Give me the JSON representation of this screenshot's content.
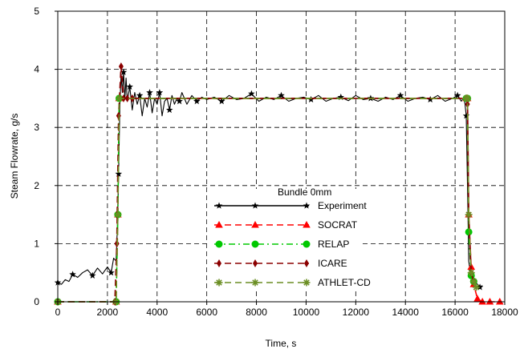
{
  "chart_data": {
    "type": "line",
    "xlabel": "Time, s",
    "ylabel": "Steam Flowrate, g/s",
    "xlim": [
      0,
      18000
    ],
    "ylim": [
      0,
      5
    ],
    "xticks": [
      0,
      2000,
      4000,
      6000,
      8000,
      10000,
      12000,
      14000,
      16000,
      18000
    ],
    "yticks": [
      0,
      1,
      2,
      3,
      4,
      5
    ],
    "grid": "dashed",
    "legend_title": "Bundle 0mm",
    "legend_position": "center-bottom",
    "series": [
      {
        "name": "Experiment",
        "color": "#000000",
        "dash": "solid",
        "marker": "star",
        "x": [
          0,
          150,
          300,
          450,
          600,
          800,
          1000,
          1200,
          1400,
          1600,
          1800,
          2000,
          2150,
          2250,
          2350,
          2400,
          2450,
          2500,
          2550,
          2600,
          2650,
          2700,
          2750,
          2800,
          2900,
          3000,
          3100,
          3200,
          3300,
          3400,
          3500,
          3600,
          3700,
          3800,
          3900,
          4000,
          4100,
          4200,
          4300,
          4400,
          4500,
          4600,
          4700,
          4800,
          4900,
          5000,
          5200,
          5400,
          5600,
          5800,
          6000,
          6300,
          6600,
          6900,
          7200,
          7500,
          7800,
          8100,
          8400,
          8700,
          9000,
          9300,
          9600,
          9900,
          10200,
          10500,
          10800,
          11100,
          11400,
          11700,
          12000,
          12300,
          12600,
          12900,
          13200,
          13500,
          13800,
          14100,
          14400,
          14700,
          15000,
          15300,
          15600,
          15900,
          16100,
          16250,
          16350,
          16400,
          16450,
          16500,
          16550,
          16600,
          16650,
          16700,
          16800,
          16900,
          17000,
          17100
        ],
        "y": [
          0.33,
          0.3,
          0.38,
          0.35,
          0.47,
          0.42,
          0.5,
          0.55,
          0.45,
          0.58,
          0.48,
          0.6,
          0.5,
          0.75,
          0.7,
          1.3,
          2.2,
          3.4,
          3.9,
          3.6,
          3.95,
          3.5,
          3.85,
          3.45,
          3.7,
          3.3,
          3.6,
          3.4,
          3.55,
          3.2,
          3.5,
          3.35,
          3.6,
          3.25,
          3.5,
          3.4,
          3.6,
          3.2,
          3.45,
          3.5,
          3.3,
          3.55,
          3.4,
          3.5,
          3.45,
          3.6,
          3.4,
          3.55,
          3.45,
          3.52,
          3.48,
          3.52,
          3.45,
          3.55,
          3.48,
          3.5,
          3.58,
          3.45,
          3.52,
          3.48,
          3.55,
          3.45,
          3.5,
          3.52,
          3.48,
          3.55,
          3.45,
          3.5,
          3.52,
          3.46,
          3.55,
          3.48,
          3.5,
          3.45,
          3.52,
          3.48,
          3.55,
          3.45,
          3.5,
          3.52,
          3.48,
          3.55,
          3.45,
          3.5,
          3.55,
          3.45,
          3.52,
          3.4,
          3.2,
          2.0,
          0.7,
          0.55,
          0.45,
          0.4,
          0.35,
          0.3,
          0.25,
          0.28
        ]
      },
      {
        "name": "SOCRAT",
        "color": "#ff0000",
        "dash": "dashed",
        "marker": "triangle",
        "x": [
          0,
          2350,
          2420,
          2470,
          16450,
          16500,
          16550,
          16650,
          16750,
          16900,
          17100,
          17400,
          17800
        ],
        "y": [
          0.0,
          0.0,
          1.5,
          3.5,
          3.5,
          3.5,
          1.5,
          0.6,
          0.3,
          0.05,
          0.0,
          0.0,
          0.0
        ]
      },
      {
        "name": "RELAP",
        "color": "#00c800",
        "dash": "dashdot",
        "marker": "circle",
        "x": [
          0,
          2350,
          2420,
          2470,
          16450,
          16500,
          16550,
          16650,
          16750
        ],
        "y": [
          0.0,
          0.0,
          1.5,
          3.5,
          3.5,
          3.5,
          1.2,
          0.45,
          0.35
        ]
      },
      {
        "name": "ICARE",
        "color": "#8b0000",
        "dash": "dashed",
        "marker": "diamond",
        "x": [
          0,
          2300,
          2380,
          2450,
          2550,
          2650,
          2800,
          3000,
          16450,
          16500,
          16550,
          16650,
          16750
        ],
        "y": [
          0.0,
          0.0,
          1.0,
          3.2,
          4.05,
          3.5,
          3.5,
          3.5,
          3.5,
          3.4,
          1.5,
          0.5,
          0.35
        ]
      },
      {
        "name": "ATHLET-CD",
        "color": "#6b8e23",
        "dash": "dashed",
        "marker": "asterisk",
        "x": [
          0,
          2350,
          2420,
          2480,
          16450,
          16500,
          16550,
          16650,
          16750,
          16850
        ],
        "y": [
          0.0,
          0.0,
          1.5,
          3.5,
          3.5,
          3.5,
          1.5,
          0.5,
          0.35,
          0.25
        ]
      }
    ]
  }
}
